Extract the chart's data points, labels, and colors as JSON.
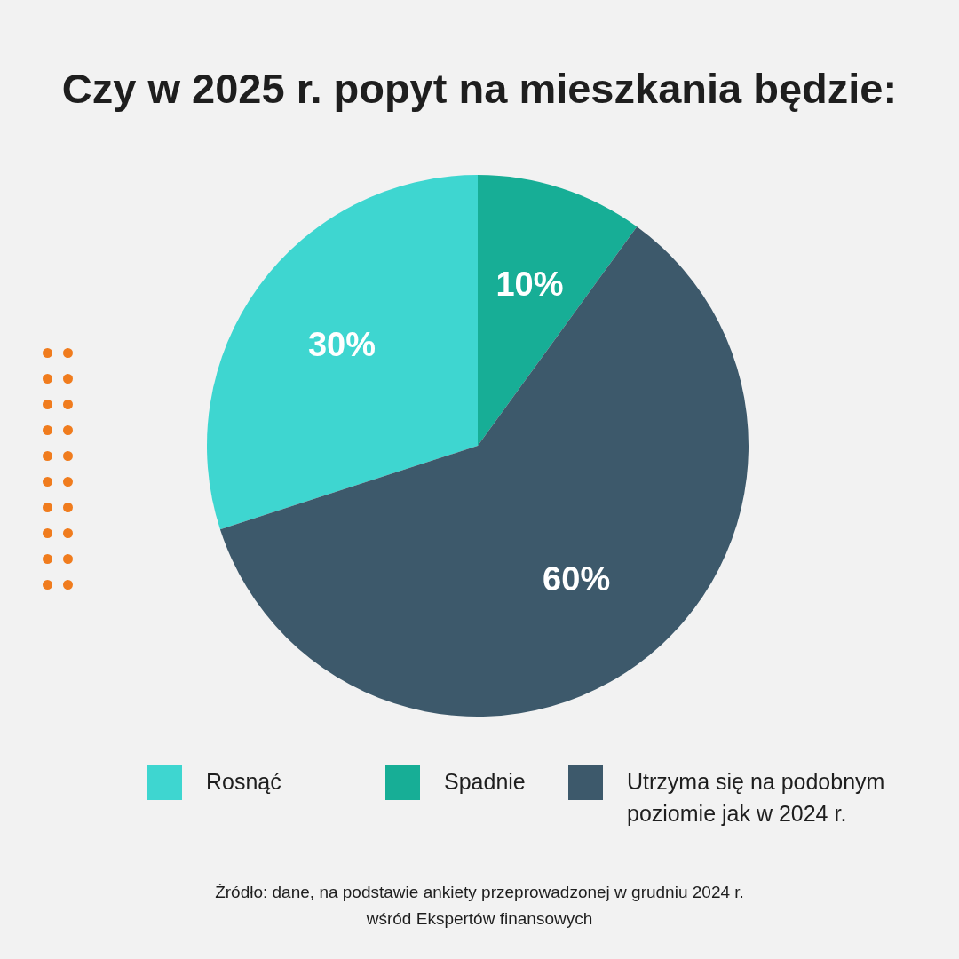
{
  "chart_data": {
    "type": "pie",
    "title": "Czy w 2025 r. popyt na mieszkania będzie:",
    "categories": [
      "Rosnąć",
      "Spadnie",
      "Utrzyma się na podobnym poziomie jak w 2024 r."
    ],
    "values": [
      30,
      10,
      60
    ],
    "colors": [
      "#3ed6d0",
      "#17ae96",
      "#3d596b"
    ],
    "value_labels": [
      "30%",
      "10%",
      "60%"
    ],
    "legend": "bottom",
    "annotations": [
      "Źródło: dane, na podstawie ankiety przeprowadzonej w grudniu 2024 r. wśród Ekspertów finansowych"
    ]
  }
}
